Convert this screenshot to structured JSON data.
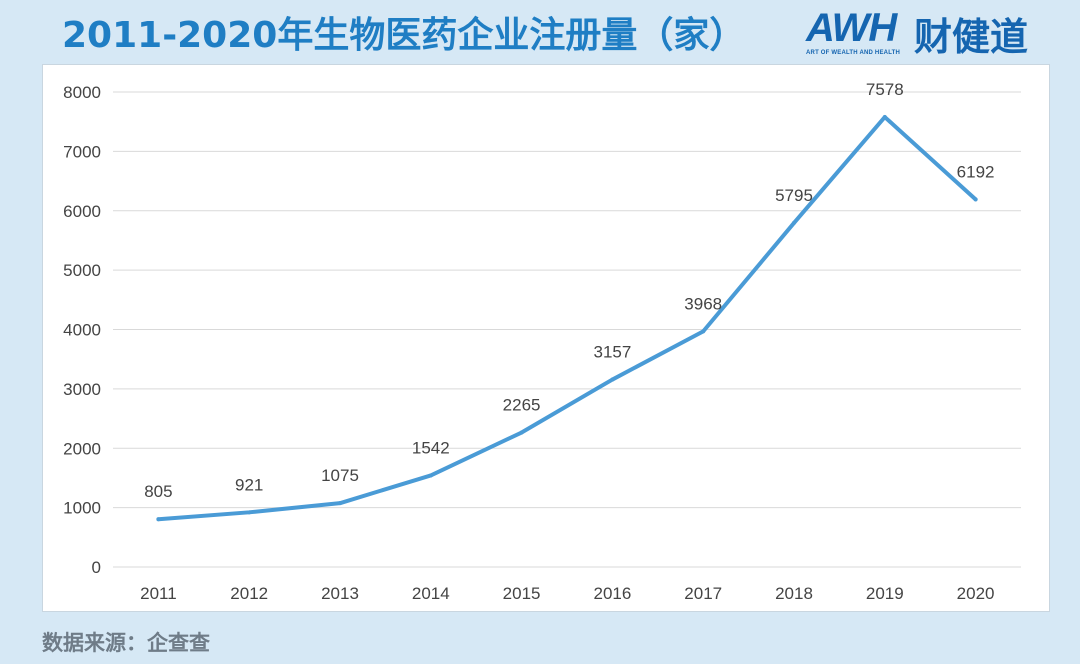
{
  "title": "2011-2020年生物医药企业注册量（家）",
  "logo": {
    "brand": "AWH",
    "cn": "财健道",
    "tagline": "ART OF WEALTH AND HEALTH"
  },
  "source": "数据来源：企查查",
  "colors": {
    "line": "#4a9bd6",
    "title": "#1f7ec4",
    "background": "#d6e8f5"
  },
  "chart_data": {
    "type": "line",
    "title": "2011-2020年生物医药企业注册量（家）",
    "categories": [
      "2011",
      "2012",
      "2013",
      "2014",
      "2015",
      "2016",
      "2017",
      "2018",
      "2019",
      "2020"
    ],
    "values": [
      805,
      921,
      1075,
      1542,
      2265,
      3157,
      3968,
      5795,
      7578,
      6192
    ],
    "ylim": [
      0,
      8000
    ],
    "yticks": [
      0,
      1000,
      2000,
      3000,
      4000,
      5000,
      6000,
      7000,
      8000
    ],
    "grid": true,
    "data_labels": true,
    "legend": "none"
  }
}
